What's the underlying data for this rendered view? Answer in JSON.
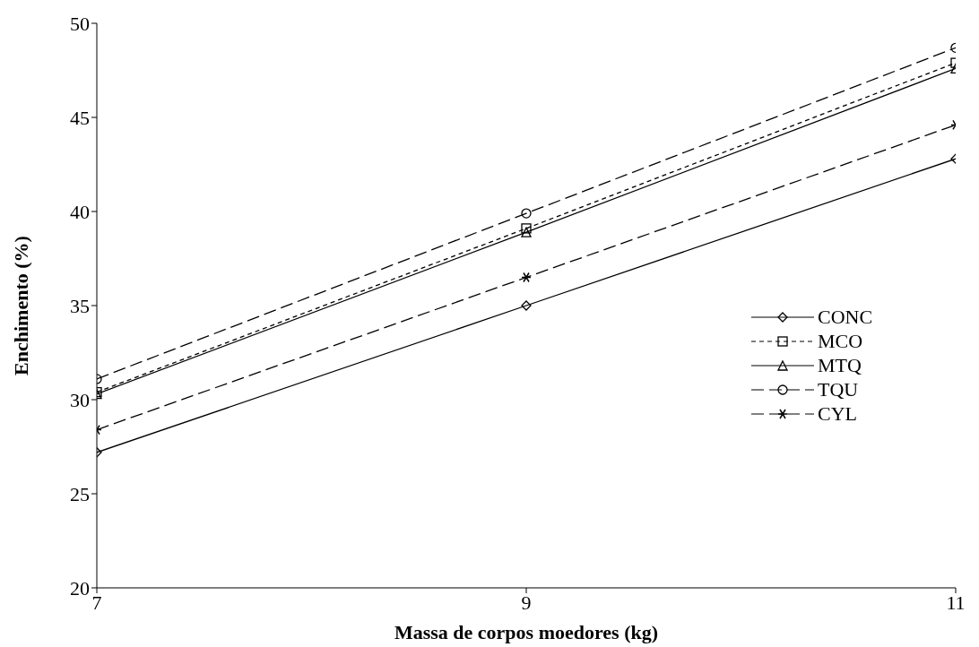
{
  "chart_data": {
    "type": "line",
    "xlabel": "Massa de corpos moedores (kg)",
    "ylabel": "Enchimento (%)",
    "x": [
      7,
      9,
      11
    ],
    "xlim": [
      7,
      11
    ],
    "xticks": [
      7,
      9,
      11
    ],
    "ylim": [
      20,
      50
    ],
    "yticks": [
      20,
      25,
      30,
      35,
      40,
      45,
      50
    ],
    "legend": "right",
    "series": [
      {
        "name": "CONC",
        "color": "#000000",
        "values": [
          27.2,
          35.0,
          42.8
        ],
        "marker": "diamond",
        "line_style": "solid"
      },
      {
        "name": "MCO",
        "color": "#000000",
        "values": [
          30.4,
          39.1,
          47.9
        ],
        "marker": "square",
        "line_style": "dotted"
      },
      {
        "name": "MTQ",
        "color": "#000000",
        "values": [
          30.3,
          38.9,
          47.6
        ],
        "marker": "triangle",
        "line_style": "solid"
      },
      {
        "name": "TQU",
        "color": "#000000",
        "values": [
          31.1,
          39.9,
          48.7
        ],
        "marker": "circle",
        "line_style": "dashed"
      },
      {
        "name": "CYL",
        "color": "#000000",
        "values": [
          28.4,
          36.5,
          44.6
        ],
        "marker": "cross",
        "line_style": "dashed"
      }
    ]
  }
}
